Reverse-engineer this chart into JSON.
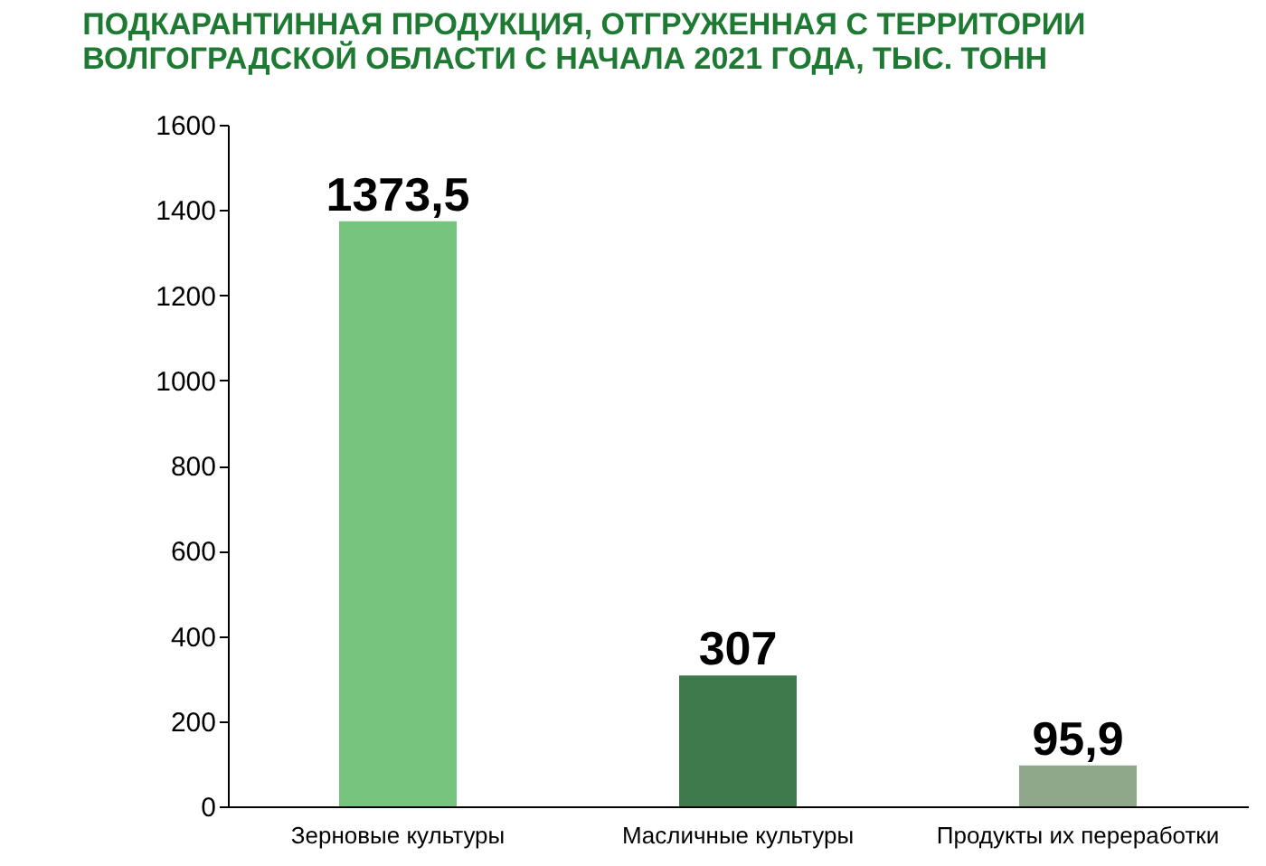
{
  "chart_data": {
    "type": "bar",
    "title": "ПОДКАРАНТИННАЯ ПРОДУКЦИЯ, ОТГРУЖЕННАЯ С ТЕРРИТОРИИ ВОЛГОГРАДСКОЙ ОБЛАСТИ С НАЧАЛА 2021 ГОДА, ТЫС. ТОНН",
    "categories": [
      "Зерновые культуры",
      "Масличные культуры",
      "Продукты их переработки"
    ],
    "values": [
      1373.5,
      307,
      95.9
    ],
    "colors": [
      "#77c47f",
      "#3f7a4a",
      "#8fa88a"
    ],
    "value_labels": [
      "1373,5",
      "307",
      "95,9"
    ],
    "ylim": [
      0,
      1600
    ],
    "yticks": [
      0,
      200,
      400,
      600,
      800,
      1000,
      1200,
      1400,
      1600
    ],
    "grid": false
  }
}
